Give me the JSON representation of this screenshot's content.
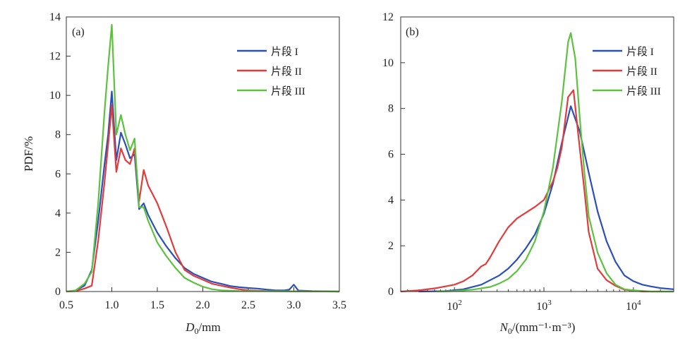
{
  "chart_data": [
    {
      "type": "line",
      "panel_label": "(a)",
      "xlabel_var": "D",
      "xlabel_sub": "0",
      "xlabel_unit": "/mm",
      "ylabel": "PDF/%",
      "xlim": [
        0.5,
        3.5
      ],
      "ylim": [
        0,
        14
      ],
      "x_ticks": [
        "0.5",
        "1.0",
        "1.5",
        "2.0",
        "2.5",
        "3.0",
        "3.5"
      ],
      "y_ticks": [
        "0",
        "2",
        "4",
        "6",
        "8",
        "10",
        "12",
        "14"
      ],
      "legend_position": "top-right",
      "series": [
        {
          "name": "片段 I",
          "color": "#2b4fb8",
          "points": [
            [
              0.5,
              0
            ],
            [
              0.6,
              0.05
            ],
            [
              0.7,
              0.3
            ],
            [
              0.78,
              1.1
            ],
            [
              0.85,
              3.6
            ],
            [
              0.92,
              6.5
            ],
            [
              0.96,
              8
            ],
            [
              1.0,
              10.2
            ],
            [
              1.05,
              6.7
            ],
            [
              1.1,
              8.1
            ],
            [
              1.15,
              7.5
            ],
            [
              1.2,
              6.8
            ],
            [
              1.25,
              7.0
            ],
            [
              1.3,
              4.2
            ],
            [
              1.35,
              4.5
            ],
            [
              1.4,
              3.9
            ],
            [
              1.5,
              3.0
            ],
            [
              1.6,
              2.3
            ],
            [
              1.7,
              1.7
            ],
            [
              1.8,
              1.2
            ],
            [
              1.9,
              0.9
            ],
            [
              2.0,
              0.7
            ],
            [
              2.1,
              0.5
            ],
            [
              2.2,
              0.4
            ],
            [
              2.3,
              0.28
            ],
            [
              2.4,
              0.22
            ],
            [
              2.5,
              0.18
            ],
            [
              2.6,
              0.15
            ],
            [
              2.7,
              0.1
            ],
            [
              2.8,
              0.06
            ],
            [
              2.9,
              0.06
            ],
            [
              2.95,
              0.1
            ],
            [
              3.0,
              0.35
            ],
            [
              3.05,
              0.05
            ],
            [
              3.2,
              0.02
            ],
            [
              3.5,
              0
            ]
          ]
        },
        {
          "name": "片段 II",
          "color": "#e23b3b",
          "points": [
            [
              0.5,
              0
            ],
            [
              0.6,
              0.02
            ],
            [
              0.7,
              0.15
            ],
            [
              0.78,
              0.3
            ],
            [
              0.85,
              2.6
            ],
            [
              0.92,
              5.6
            ],
            [
              0.96,
              7.5
            ],
            [
              1.0,
              9.5
            ],
            [
              1.05,
              6.1
            ],
            [
              1.1,
              7.3
            ],
            [
              1.15,
              6.7
            ],
            [
              1.2,
              6.5
            ],
            [
              1.25,
              7.3
            ],
            [
              1.3,
              4.6
            ],
            [
              1.35,
              6.2
            ],
            [
              1.4,
              5.4
            ],
            [
              1.5,
              4.5
            ],
            [
              1.6,
              3.3
            ],
            [
              1.7,
              2.0
            ],
            [
              1.8,
              1.1
            ],
            [
              1.9,
              0.8
            ],
            [
              2.0,
              0.6
            ],
            [
              2.1,
              0.4
            ],
            [
              2.2,
              0.3
            ],
            [
              2.3,
              0.2
            ],
            [
              2.4,
              0.12
            ],
            [
              2.5,
              0.06
            ],
            [
              2.7,
              0.02
            ],
            [
              3.5,
              0
            ]
          ]
        },
        {
          "name": "片段 III",
          "color": "#5cc23e",
          "points": [
            [
              0.5,
              0
            ],
            [
              0.6,
              0.05
            ],
            [
              0.7,
              0.4
            ],
            [
              0.78,
              1.0
            ],
            [
              0.85,
              4.5
            ],
            [
              0.92,
              9.2
            ],
            [
              0.96,
              11.5
            ],
            [
              1.0,
              13.6
            ],
            [
              1.05,
              8.0
            ],
            [
              1.1,
              9.0
            ],
            [
              1.15,
              8.0
            ],
            [
              1.2,
              7.2
            ],
            [
              1.25,
              7.8
            ],
            [
              1.3,
              4.3
            ],
            [
              1.35,
              4.3
            ],
            [
              1.4,
              3.6
            ],
            [
              1.5,
              2.5
            ],
            [
              1.6,
              1.8
            ],
            [
              1.7,
              1.2
            ],
            [
              1.8,
              0.7
            ],
            [
              1.9,
              0.45
            ],
            [
              2.0,
              0.25
            ],
            [
              2.1,
              0.12
            ],
            [
              2.2,
              0.06
            ],
            [
              2.4,
              0.02
            ],
            [
              3.5,
              0
            ]
          ]
        }
      ]
    },
    {
      "type": "line",
      "panel_label": "(b)",
      "xlabel_var": "N",
      "xlabel_sub": "0",
      "xlabel_unit": "/(mm⁻¹·m⁻³)",
      "ylabel": "",
      "xscale": "log",
      "xlim_log10": [
        1.4,
        4.45
      ],
      "ylim": [
        0,
        12
      ],
      "x_ticks": [
        {
          "base": "10",
          "exp": "2",
          "value": 2
        },
        {
          "base": "10",
          "exp": "3",
          "value": 3
        },
        {
          "base": "10",
          "exp": "4",
          "value": 4
        }
      ],
      "y_ticks": [
        "0",
        "2",
        "4",
        "6",
        "8",
        "10",
        "12"
      ],
      "legend_position": "top-right",
      "series": [
        {
          "name": "片段 I",
          "color": "#2b4fb8",
          "points": [
            [
              1.6,
              0
            ],
            [
              1.9,
              0.02
            ],
            [
              2.1,
              0.1
            ],
            [
              2.3,
              0.3
            ],
            [
              2.5,
              0.7
            ],
            [
              2.6,
              1.0
            ],
            [
              2.7,
              1.4
            ],
            [
              2.8,
              1.9
            ],
            [
              2.9,
              2.5
            ],
            [
              3.0,
              3.4
            ],
            [
              3.1,
              4.7
            ],
            [
              3.2,
              6.5
            ],
            [
              3.3,
              8.1
            ],
            [
              3.4,
              7.0
            ],
            [
              3.5,
              5.2
            ],
            [
              3.6,
              3.5
            ],
            [
              3.7,
              2.2
            ],
            [
              3.8,
              1.3
            ],
            [
              3.9,
              0.7
            ],
            [
              4.0,
              0.45
            ],
            [
              4.1,
              0.3
            ],
            [
              4.2,
              0.22
            ],
            [
              4.3,
              0.15
            ],
            [
              4.45,
              0.1
            ]
          ]
        },
        {
          "name": "片段 II",
          "color": "#e23b3b",
          "points": [
            [
              1.4,
              0
            ],
            [
              1.6,
              0.05
            ],
            [
              1.8,
              0.15
            ],
            [
              2.0,
              0.3
            ],
            [
              2.1,
              0.45
            ],
            [
              2.2,
              0.7
            ],
            [
              2.3,
              1.1
            ],
            [
              2.35,
              1.2
            ],
            [
              2.4,
              1.5
            ],
            [
              2.5,
              2.2
            ],
            [
              2.6,
              2.8
            ],
            [
              2.7,
              3.2
            ],
            [
              2.8,
              3.45
            ],
            [
              2.9,
              3.7
            ],
            [
              3.0,
              4.0
            ],
            [
              3.1,
              4.8
            ],
            [
              3.15,
              5.4
            ],
            [
              3.2,
              6.3
            ],
            [
              3.27,
              8.5
            ],
            [
              3.33,
              8.8
            ],
            [
              3.38,
              7.0
            ],
            [
              3.45,
              4.5
            ],
            [
              3.5,
              2.6
            ],
            [
              3.55,
              1.8
            ],
            [
              3.6,
              1.0
            ],
            [
              3.7,
              0.5
            ],
            [
              3.8,
              0.25
            ],
            [
              3.9,
              0.08
            ],
            [
              4.1,
              0
            ],
            [
              4.45,
              0
            ]
          ]
        },
        {
          "name": "片段 III",
          "color": "#5cc23e",
          "points": [
            [
              1.8,
              0
            ],
            [
              2.0,
              0.02
            ],
            [
              2.2,
              0.08
            ],
            [
              2.4,
              0.2
            ],
            [
              2.5,
              0.35
            ],
            [
              2.6,
              0.55
            ],
            [
              2.7,
              0.9
            ],
            [
              2.8,
              1.4
            ],
            [
              2.9,
              2.2
            ],
            [
              3.0,
              3.5
            ],
            [
              3.1,
              5.4
            ],
            [
              3.2,
              8.3
            ],
            [
              3.27,
              10.9
            ],
            [
              3.3,
              11.3
            ],
            [
              3.35,
              10.2
            ],
            [
              3.4,
              7.6
            ],
            [
              3.45,
              5.3
            ],
            [
              3.5,
              3.3
            ],
            [
              3.6,
              1.7
            ],
            [
              3.7,
              0.8
            ],
            [
              3.8,
              0.3
            ],
            [
              3.9,
              0.1
            ],
            [
              4.0,
              0.05
            ],
            [
              4.2,
              0
            ],
            [
              4.45,
              0
            ]
          ]
        }
      ]
    }
  ]
}
